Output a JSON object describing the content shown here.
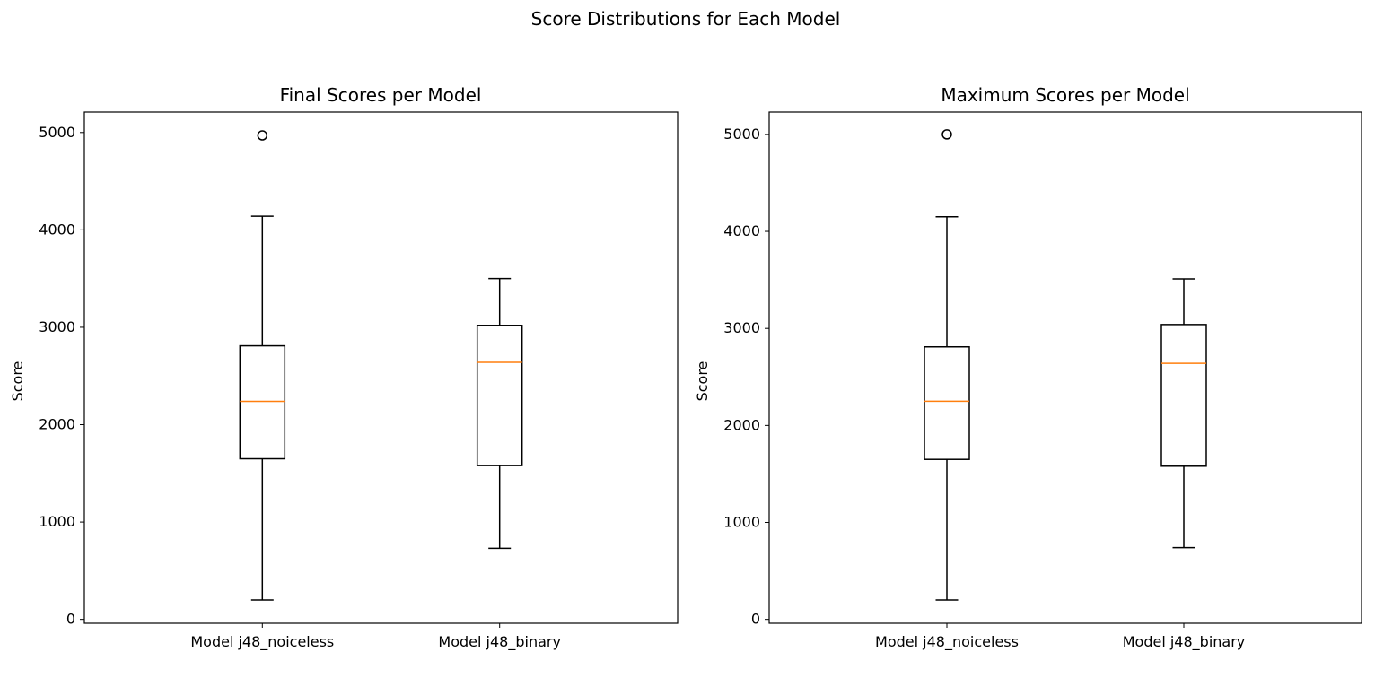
{
  "figure": {
    "title": "Score Distributions for Each Model"
  },
  "chart_data": [
    {
      "type": "box",
      "title": "Final Scores per Model",
      "xlabel": "",
      "ylabel": "Score",
      "categories": [
        "Model j48_noiceless",
        "Model j48_binary"
      ],
      "yticks": [
        "0",
        "1000",
        "2000",
        "3000",
        "4000",
        "5000"
      ],
      "ylim": [
        -40,
        5210
      ],
      "grid": false,
      "boxes": [
        {
          "whisker_low": 200,
          "q1": 1650,
          "median": 2240,
          "q3": 2810,
          "whisker_high": 4140,
          "outliers": [
            4970
          ]
        },
        {
          "whisker_low": 730,
          "q1": 1580,
          "median": 2640,
          "q3": 3020,
          "whisker_high": 3500,
          "outliers": []
        }
      ],
      "colors": {
        "box": "#000000",
        "median": "#ff7f0e"
      }
    },
    {
      "type": "box",
      "title": "Maximum Scores per Model",
      "xlabel": "",
      "ylabel": "Score",
      "categories": [
        "Model j48_noiceless",
        "Model j48_binary"
      ],
      "yticks": [
        "0",
        "1000",
        "2000",
        "3000",
        "4000",
        "5000"
      ],
      "ylim": [
        -40,
        5230
      ],
      "grid": false,
      "boxes": [
        {
          "whisker_low": 200,
          "q1": 1650,
          "median": 2250,
          "q3": 2810,
          "whisker_high": 4150,
          "outliers": [
            5000
          ]
        },
        {
          "whisker_low": 740,
          "q1": 1580,
          "median": 2640,
          "q3": 3040,
          "whisker_high": 3510,
          "outliers": []
        }
      ],
      "colors": {
        "box": "#000000",
        "median": "#ff7f0e"
      }
    }
  ]
}
